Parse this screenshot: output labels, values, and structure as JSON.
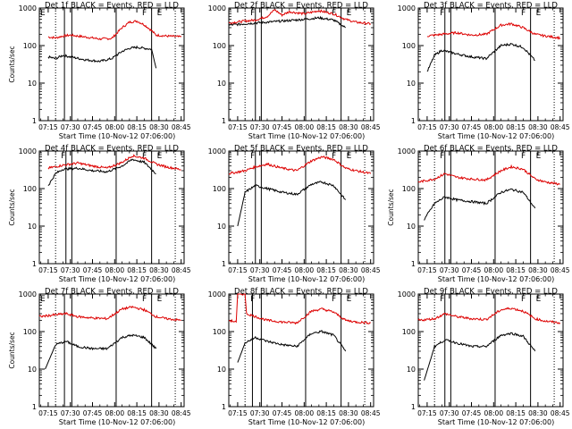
{
  "chart_data": [
    {
      "type": "line",
      "title": "Det 1f BLACK = Events, RED = LLD",
      "xlabel": "Start Time (10-Nov-12 07:06:00)",
      "ylabel": "Counts/sec",
      "y_scale": "log",
      "ylim": [
        1,
        1000
      ],
      "xlim": [
        "07:09",
        "08:47"
      ],
      "x_ticks": [
        "07:15",
        "07:30",
        "07:45",
        "08:00",
        "08:15",
        "08:30",
        "08:45"
      ],
      "y_ticks": [
        "1",
        "10",
        "100",
        "1000"
      ],
      "markers": [
        {
          "label": "E",
          "x": "07:09"
        },
        {
          "label": "F",
          "x": "08:18"
        },
        {
          "label": "E",
          "x": "08:28"
        }
      ],
      "vlines_solid": [
        "07:26",
        "07:31",
        "08:01",
        "08:25"
      ],
      "vlines_dotted": [
        "07:20",
        "08:41"
      ],
      "series": [
        {
          "name": "RED",
          "color": "#dd0000",
          "x": [
            "07:15",
            "07:20",
            "07:25",
            "07:30",
            "07:40",
            "07:50",
            "07:58",
            "08:05",
            "08:10",
            "08:15",
            "08:20",
            "08:25",
            "08:28",
            "08:35",
            "08:45"
          ],
          "y": [
            170,
            160,
            180,
            190,
            170,
            150,
            155,
            300,
            420,
            450,
            360,
            250,
            190,
            180,
            170
          ]
        },
        {
          "name": "BLACK",
          "color": "#000000",
          "x": [
            "07:15",
            "07:20",
            "07:25",
            "07:30",
            "07:40",
            "07:50",
            "07:58",
            "08:05",
            "08:10",
            "08:15",
            "08:20",
            "08:25",
            "08:28"
          ],
          "y": [
            50,
            45,
            55,
            50,
            42,
            38,
            45,
            70,
            85,
            90,
            85,
            80,
            25
          ]
        }
      ]
    },
    {
      "type": "line",
      "title": "Det 2f BLACK = Events, RED = LLD",
      "xlabel": "Start Time (10-Nov-12 07:06:00)",
      "ylabel": "",
      "y_scale": "log",
      "ylim": [
        1,
        1000
      ],
      "xlim": [
        "07:09",
        "08:47"
      ],
      "x_ticks": [
        "07:15",
        "07:30",
        "07:45",
        "08:00",
        "08:15",
        "08:30",
        "08:45"
      ],
      "y_ticks": [
        "1",
        "10",
        "100",
        "1000"
      ],
      "markers": [
        {
          "label": "F",
          "x": "07:23"
        },
        {
          "label": "F",
          "x": "08:18"
        },
        {
          "label": "E",
          "x": "08:28"
        }
      ],
      "vlines_solid": [
        "07:27",
        "07:31",
        "08:01",
        "08:25"
      ],
      "vlines_dotted": [
        "07:20",
        "08:41"
      ],
      "series": [
        {
          "name": "RED",
          "color": "#dd0000",
          "x": [
            "07:09",
            "07:20",
            "07:27",
            "07:35",
            "07:40",
            "07:45",
            "07:50",
            "08:00",
            "08:10",
            "08:20",
            "08:28",
            "08:35",
            "08:45"
          ],
          "y": [
            400,
            450,
            480,
            600,
            900,
            650,
            800,
            700,
            850,
            700,
            500,
            420,
            380
          ]
        },
        {
          "name": "BLACK",
          "color": "#000000",
          "x": [
            "07:09",
            "07:20",
            "07:27",
            "07:35",
            "07:45",
            "08:00",
            "08:10",
            "08:20",
            "08:28"
          ],
          "y": [
            350,
            380,
            400,
            420,
            450,
            500,
            550,
            480,
            300
          ]
        }
      ]
    },
    {
      "type": "line",
      "title": "Det 3f BLACK = Events, RED = LLD",
      "xlabel": "Start Time (10-Nov-12 07:06:00)",
      "ylabel": "",
      "y_scale": "log",
      "ylim": [
        1,
        1000
      ],
      "xlim": [
        "07:09",
        "08:47"
      ],
      "x_ticks": [
        "07:15",
        "07:30",
        "07:45",
        "08:00",
        "08:15",
        "08:30",
        "08:45"
      ],
      "y_ticks": [
        "1",
        "10",
        "100",
        "1000"
      ],
      "markers": [
        {
          "label": "F",
          "x": "07:23"
        },
        {
          "label": "F",
          "x": "08:18"
        },
        {
          "label": "E",
          "x": "08:28"
        }
      ],
      "vlines_solid": [
        "07:27",
        "07:31",
        "08:01",
        "08:25"
      ],
      "vlines_dotted": [
        "07:20",
        "08:41"
      ],
      "series": [
        {
          "name": "RED",
          "color": "#dd0000",
          "x": [
            "07:15",
            "07:25",
            "07:35",
            "07:45",
            "07:55",
            "08:05",
            "08:12",
            "08:20",
            "08:28",
            "08:35",
            "08:45"
          ],
          "y": [
            180,
            200,
            220,
            190,
            200,
            350,
            380,
            300,
            200,
            180,
            160
          ]
        },
        {
          "name": "BLACK",
          "color": "#000000",
          "x": [
            "07:15",
            "07:20",
            "07:25",
            "07:35",
            "07:45",
            "07:55",
            "08:05",
            "08:12",
            "08:20",
            "08:28"
          ],
          "y": [
            20,
            55,
            75,
            60,
            50,
            45,
            100,
            110,
            90,
            40
          ]
        }
      ]
    },
    {
      "type": "line",
      "title": "Det 4f BLACK = Events, RED = LLD",
      "xlabel": "Start Time (10-Nov-12 07:06:00)",
      "ylabel": "Counts/sec",
      "y_scale": "log",
      "ylim": [
        1,
        1000
      ],
      "xlim": [
        "07:09",
        "08:47"
      ],
      "x_ticks": [
        "07:15",
        "07:30",
        "07:45",
        "08:00",
        "08:15",
        "08:30",
        "08:45"
      ],
      "y_ticks": [
        "1",
        "10",
        "100",
        "1000"
      ],
      "markers": [
        {
          "label": "F",
          "x": "07:23"
        },
        {
          "label": "F",
          "x": "08:18"
        },
        {
          "label": "E",
          "x": "08:28"
        }
      ],
      "vlines_solid": [
        "07:27",
        "07:31",
        "08:01",
        "08:25"
      ],
      "vlines_dotted": [
        "07:20",
        "08:41"
      ],
      "series": [
        {
          "name": "RED",
          "color": "#dd0000",
          "x": [
            "07:15",
            "07:25",
            "07:35",
            "07:45",
            "07:55",
            "08:05",
            "08:12",
            "08:20",
            "08:28",
            "08:35",
            "08:45"
          ],
          "y": [
            350,
            420,
            480,
            400,
            350,
            500,
            750,
            650,
            450,
            380,
            320
          ]
        },
        {
          "name": "BLACK",
          "color": "#000000",
          "x": [
            "07:15",
            "07:20",
            "07:25",
            "07:35",
            "07:45",
            "07:55",
            "08:05",
            "08:12",
            "08:20",
            "08:28"
          ],
          "y": [
            120,
            250,
            330,
            350,
            300,
            280,
            400,
            600,
            500,
            250
          ]
        }
      ]
    },
    {
      "type": "line",
      "title": "Det 5f BLACK = Events, RED = LLD",
      "xlabel": "Start Time (10-Nov-12 07:06:00)",
      "ylabel": "",
      "y_scale": "log",
      "ylim": [
        1,
        1000
      ],
      "xlim": [
        "07:09",
        "08:47"
      ],
      "x_ticks": [
        "07:15",
        "07:30",
        "07:45",
        "08:00",
        "08:15",
        "08:30",
        "08:45"
      ],
      "y_ticks": [
        "1",
        "10",
        "100",
        "1000"
      ],
      "markers": [
        {
          "label": "F",
          "x": "07:23"
        },
        {
          "label": "F",
          "x": "08:18"
        },
        {
          "label": "E",
          "x": "08:28"
        }
      ],
      "vlines_solid": [
        "07:27",
        "07:31",
        "08:01",
        "08:25"
      ],
      "vlines_dotted": [
        "07:20",
        "08:41"
      ],
      "series": [
        {
          "name": "RED",
          "color": "#dd0000",
          "x": [
            "07:09",
            "07:20",
            "07:27",
            "07:35",
            "07:45",
            "07:55",
            "08:05",
            "08:12",
            "08:20",
            "08:28",
            "08:35",
            "08:45"
          ],
          "y": [
            250,
            300,
            380,
            450,
            350,
            300,
            550,
            700,
            600,
            350,
            300,
            250
          ]
        },
        {
          "name": "BLACK",
          "color": "#000000",
          "x": [
            "07:15",
            "07:20",
            "07:27",
            "07:35",
            "07:45",
            "07:55",
            "08:05",
            "08:12",
            "08:20",
            "08:28"
          ],
          "y": [
            10,
            80,
            120,
            100,
            80,
            70,
            130,
            150,
            120,
            50
          ]
        }
      ]
    },
    {
      "type": "line",
      "title": "Det 6f BLACK = Events, RED = LLD",
      "xlabel": "Start Time (10-Nov-12 07:06:00)",
      "ylabel": "Counts/sec",
      "y_scale": "log",
      "ylim": [
        1,
        1000
      ],
      "xlim": [
        "07:09",
        "08:47"
      ],
      "x_ticks": [
        "07:15",
        "07:30",
        "07:45",
        "08:00",
        "08:15",
        "08:30",
        "08:45"
      ],
      "y_ticks": [
        "1",
        "10",
        "100",
        "1000"
      ],
      "markers": [
        {
          "label": "F",
          "x": "07:23"
        },
        {
          "label": "F",
          "x": "08:18"
        },
        {
          "label": "E",
          "x": "08:28"
        }
      ],
      "vlines_solid": [
        "07:27",
        "07:31",
        "08:01",
        "08:25"
      ],
      "vlines_dotted": [
        "07:20",
        "08:41"
      ],
      "series": [
        {
          "name": "RED",
          "color": "#dd0000",
          "x": [
            "07:09",
            "07:20",
            "07:27",
            "07:35",
            "07:45",
            "07:55",
            "08:05",
            "08:12",
            "08:20",
            "08:28",
            "08:35",
            "08:45"
          ],
          "y": [
            150,
            180,
            250,
            200,
            180,
            170,
            300,
            380,
            330,
            180,
            150,
            130
          ]
        },
        {
          "name": "BLACK",
          "color": "#000000",
          "x": [
            "07:13",
            "07:20",
            "07:27",
            "07:35",
            "07:45",
            "07:55",
            "08:05",
            "08:12",
            "08:20",
            "08:28"
          ],
          "y": [
            15,
            40,
            60,
            50,
            45,
            40,
            80,
            95,
            80,
            30
          ]
        }
      ]
    },
    {
      "type": "line",
      "title": "Det 7f BLACK = Events, RED = LLD",
      "xlabel": "Start Time (10-Nov-12 07:06:00)",
      "ylabel": "Counts/sec",
      "y_scale": "log",
      "ylim": [
        1,
        1000
      ],
      "xlim": [
        "07:09",
        "08:47"
      ],
      "x_ticks": [
        "07:15",
        "07:30",
        "07:45",
        "08:00",
        "08:15",
        "08:30",
        "08:45"
      ],
      "y_ticks": [
        "1",
        "10",
        "100",
        "1000"
      ],
      "markers": [
        {
          "label": "E",
          "x": "07:09"
        },
        {
          "label": "F",
          "x": "08:18"
        },
        {
          "label": "E",
          "x": "08:28"
        }
      ],
      "vlines_solid": [
        "07:26",
        "07:31",
        "08:01",
        "08:25"
      ],
      "vlines_dotted": [
        "07:20",
        "08:41"
      ],
      "series": [
        {
          "name": "RED",
          "color": "#dd0000",
          "x": [
            "07:09",
            "07:20",
            "07:27",
            "07:35",
            "07:45",
            "07:55",
            "08:05",
            "08:12",
            "08:20",
            "08:28",
            "08:35",
            "08:45"
          ],
          "y": [
            250,
            280,
            300,
            250,
            230,
            220,
            400,
            450,
            380,
            250,
            220,
            200
          ]
        },
        {
          "name": "BLACK",
          "color": "#000000",
          "x": [
            "07:13",
            "07:20",
            "07:27",
            "07:35",
            "07:45",
            "07:55",
            "08:05",
            "08:12",
            "08:20",
            "08:28"
          ],
          "y": [
            10,
            45,
            55,
            40,
            35,
            35,
            70,
            80,
            70,
            35
          ]
        }
      ]
    },
    {
      "type": "line",
      "title": "Det 8f BLACK = Events, RED = LLD",
      "xlabel": "Start Time (10-Nov-12 07:06:00)",
      "ylabel": "",
      "y_scale": "log",
      "ylim": [
        1,
        1000
      ],
      "xlim": [
        "07:09",
        "08:47"
      ],
      "x_ticks": [
        "07:15",
        "07:30",
        "07:45",
        "08:00",
        "08:15",
        "08:30",
        "08:45"
      ],
      "y_ticks": [
        "1",
        "10",
        "100",
        "1000"
      ],
      "markers": [
        {
          "label": "F",
          "x": "07:23"
        },
        {
          "label": "F",
          "x": "08:18"
        },
        {
          "label": "E",
          "x": "08:28"
        }
      ],
      "vlines_solid": [
        "07:25",
        "07:31",
        "08:01",
        "08:25"
      ],
      "vlines_dotted": [
        "07:20",
        "08:41"
      ],
      "series": [
        {
          "name": "RED",
          "color": "#dd0000",
          "x": [
            "07:09",
            "07:14",
            "07:15",
            "07:20",
            "07:21",
            "07:27",
            "07:35",
            "07:45",
            "07:55",
            "08:05",
            "08:12",
            "08:20",
            "08:28",
            "08:35",
            "08:45"
          ],
          "y": [
            200,
            180,
            1000,
            1000,
            300,
            250,
            200,
            180,
            170,
            350,
            400,
            330,
            200,
            180,
            170
          ]
        },
        {
          "name": "BLACK",
          "color": "#000000",
          "x": [
            "07:15",
            "07:20",
            "07:27",
            "07:35",
            "07:45",
            "07:55",
            "08:05",
            "08:12",
            "08:20",
            "08:28"
          ],
          "y": [
            15,
            50,
            70,
            55,
            45,
            40,
            90,
            100,
            80,
            30
          ]
        }
      ]
    },
    {
      "type": "line",
      "title": "Det 9f BLACK = Events, RED = LLD",
      "xlabel": "Start Time (10-Nov-12 07:06:00)",
      "ylabel": "",
      "y_scale": "log",
      "ylim": [
        1,
        1000
      ],
      "xlim": [
        "07:09",
        "08:47"
      ],
      "x_ticks": [
        "07:15",
        "07:30",
        "07:45",
        "08:00",
        "08:15",
        "08:30",
        "08:45"
      ],
      "y_ticks": [
        "1",
        "10",
        "100",
        "1000"
      ],
      "markers": [
        {
          "label": "F",
          "x": "07:23"
        },
        {
          "label": "F",
          "x": "08:18"
        },
        {
          "label": "E",
          "x": "08:28"
        }
      ],
      "vlines_solid": [
        "07:27",
        "07:31",
        "08:01",
        "08:25"
      ],
      "vlines_dotted": [
        "07:20",
        "08:41"
      ],
      "series": [
        {
          "name": "RED",
          "color": "#dd0000",
          "x": [
            "07:09",
            "07:20",
            "07:27",
            "07:35",
            "07:45",
            "07:55",
            "08:05",
            "08:12",
            "08:20",
            "08:28",
            "08:35",
            "08:45"
          ],
          "y": [
            200,
            220,
            300,
            250,
            220,
            210,
            380,
            420,
            350,
            220,
            190,
            170
          ]
        },
        {
          "name": "BLACK",
          "color": "#000000",
          "x": [
            "07:13",
            "07:20",
            "07:27",
            "07:35",
            "07:45",
            "07:55",
            "08:05",
            "08:12",
            "08:20",
            "08:28"
          ],
          "y": [
            5,
            40,
            60,
            50,
            40,
            40,
            80,
            90,
            75,
            30
          ]
        }
      ]
    }
  ]
}
